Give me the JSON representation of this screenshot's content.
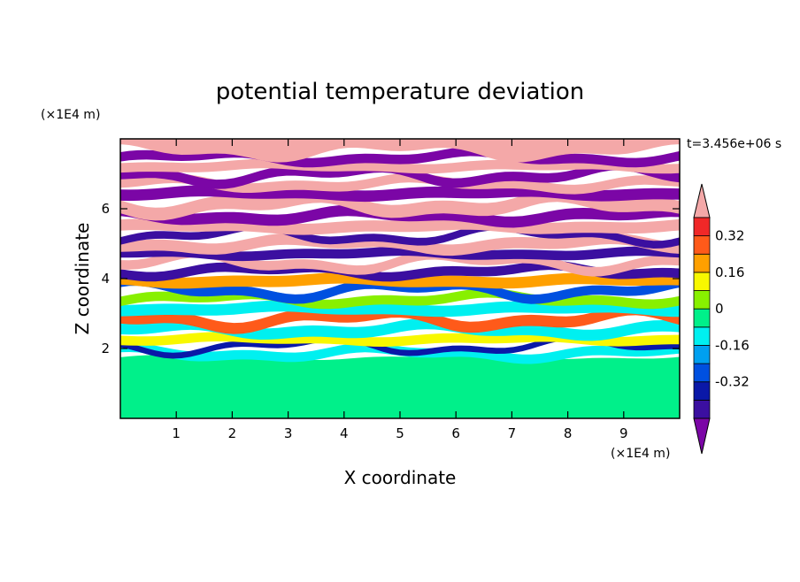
{
  "chart_data": {
    "type": "heatmap",
    "title": "potential temperature deviation",
    "xlabel": "X coordinate",
    "ylabel": "Z coordinate",
    "x_unit": "(×1E4 m)",
    "y_unit": "(×1E4 m)",
    "time_label": "t=3.456e+06 s",
    "xlim": [
      0,
      10
    ],
    "ylim": [
      0,
      8
    ],
    "x_ticks": [
      1,
      2,
      3,
      4,
      5,
      6,
      7,
      8,
      9
    ],
    "y_ticks": [
      2,
      4,
      6
    ],
    "colorbar": {
      "levels": [
        -0.48,
        -0.4,
        -0.32,
        -0.24,
        -0.16,
        -0.08,
        0,
        0.08,
        0.16,
        0.24,
        0.32,
        0.4,
        0.48
      ],
      "colors": [
        "#7b06a6",
        "#3b0fa0",
        "#0a18a8",
        "#0050e0",
        "#00a0f0",
        "#00f0f0",
        "#00f08a",
        "#88f000",
        "#f8f800",
        "#ffa000",
        "#ff5a1a",
        "#f02828",
        "#f4a8a8"
      ],
      "tick_labels": [
        "0.32",
        "0.16",
        "0",
        "-0.16",
        "-0.32"
      ],
      "tick_values": [
        0.32,
        0.16,
        0,
        -0.16,
        -0.32
      ]
    },
    "bands": [
      {
        "z0": 0.0,
        "z1": 1.75,
        "value": 0.0
      },
      {
        "z0": 1.75,
        "z1": 2.0,
        "value": -0.12
      },
      {
        "z0": 2.0,
        "z1": 2.15,
        "value": -0.36
      },
      {
        "z0": 2.15,
        "z1": 2.4,
        "value": 0.12
      },
      {
        "z0": 2.4,
        "z1": 2.7,
        "value": -0.08
      },
      {
        "z0": 2.7,
        "z1": 3.0,
        "value": 0.3
      },
      {
        "z0": 3.0,
        "z1": 3.3,
        "value": -0.12
      },
      {
        "z0": 3.3,
        "z1": 3.55,
        "value": 0.08
      },
      {
        "z0": 3.55,
        "z1": 3.8,
        "value": -0.3
      },
      {
        "z0": 3.8,
        "z1": 4.1,
        "value": 0.24
      },
      {
        "z0": 4.1,
        "z1": 4.35,
        "value": -0.4
      },
      {
        "z0": 4.35,
        "z1": 4.6,
        "value": 0.45
      },
      {
        "z0": 4.6,
        "z1": 4.85,
        "value": -0.46
      },
      {
        "z0": 4.85,
        "z1": 5.15,
        "value": 0.49
      },
      {
        "z0": 5.15,
        "z1": 5.35,
        "value": -0.46
      },
      {
        "z0": 5.35,
        "z1": 5.65,
        "value": 0.49
      },
      {
        "z0": 5.65,
        "z1": 5.95,
        "value": -0.49
      },
      {
        "z0": 5.95,
        "z1": 6.3,
        "value": 0.49
      },
      {
        "z0": 6.3,
        "z1": 6.6,
        "value": -0.49
      },
      {
        "z0": 6.6,
        "z1": 6.85,
        "value": 0.49
      },
      {
        "z0": 6.85,
        "z1": 7.1,
        "value": -0.49
      },
      {
        "z0": 7.1,
        "z1": 7.35,
        "value": 0.49
      },
      {
        "z0": 7.35,
        "z1": 7.6,
        "value": -0.49
      },
      {
        "z0": 7.6,
        "z1": 8.0,
        "value": 0.49
      }
    ]
  }
}
